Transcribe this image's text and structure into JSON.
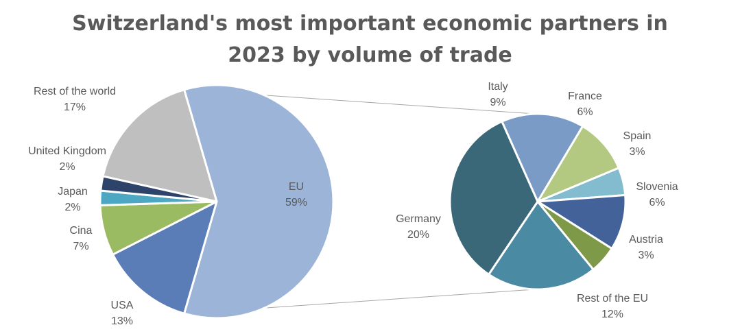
{
  "chart_data": {
    "type": "pie",
    "variant": "pie-of-pie",
    "title_lines": [
      "Switzerland's most important economic partners in",
      "2023 by volume of trade"
    ],
    "main_pie": {
      "slices": [
        {
          "label": "EU",
          "value": 59,
          "value_label": "59%",
          "color": "#9bb4d8"
        },
        {
          "label": "USA",
          "value": 13,
          "value_label": "13%",
          "color": "#5b7db7"
        },
        {
          "label": "Cina",
          "value": 7,
          "value_label": "7%",
          "color": "#9bbb63"
        },
        {
          "label": "Japan",
          "value": 2,
          "value_label": "2%",
          "color": "#4ea7c2"
        },
        {
          "label": "United Kingdom",
          "value": 2,
          "value_label": "2%",
          "color": "#2e4369"
        },
        {
          "label": "Rest of the world",
          "value": 17,
          "value_label": "17%",
          "color": "#bfbfbf"
        }
      ]
    },
    "secondary_pie": {
      "breakdown_of": "EU",
      "slices": [
        {
          "label": "Italy",
          "value": 9,
          "value_label": "9%",
          "color": "#7b9bc7"
        },
        {
          "label": "France",
          "value": 6,
          "value_label": "6%",
          "color": "#b3c982"
        },
        {
          "label": "Spain",
          "value": 3,
          "value_label": "3%",
          "color": "#83bccf"
        },
        {
          "label": "Slovenia",
          "value": 6,
          "value_label": "6%",
          "color": "#44629a"
        },
        {
          "label": "Austria",
          "value": 3,
          "value_label": "3%",
          "color": "#7e9a48"
        },
        {
          "label": "Rest of the EU",
          "value": 12,
          "value_label": "12%",
          "color": "#4b8aa3"
        },
        {
          "label": "Germany",
          "value": 20,
          "value_label": "20%",
          "color": "#3a6878"
        }
      ]
    }
  }
}
